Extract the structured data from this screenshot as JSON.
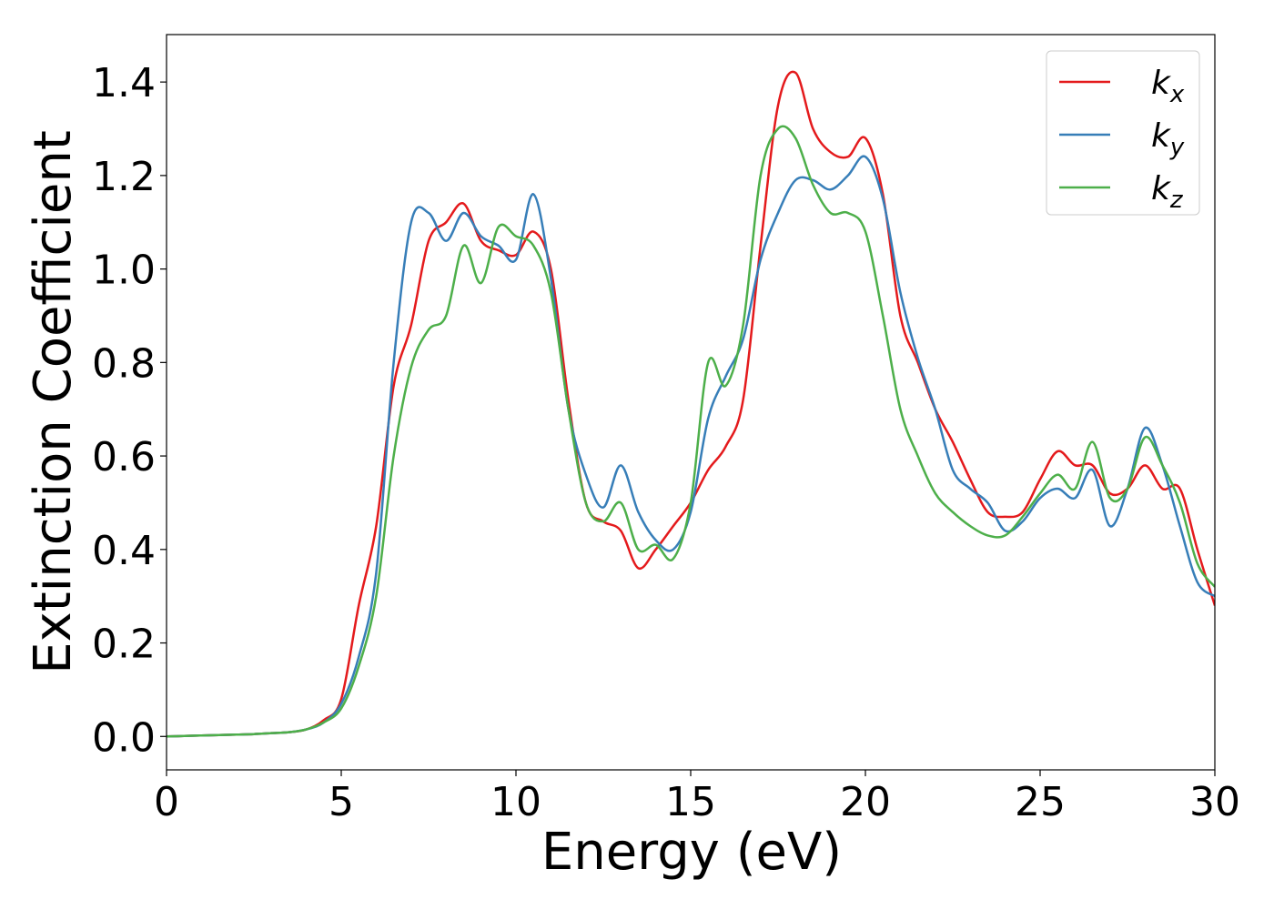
{
  "chart_data": {
    "type": "line",
    "xlabel": "Energy (eV)",
    "ylabel": "Extinction Coefficient",
    "x": [
      0,
      0.5,
      1,
      1.5,
      2,
      2.5,
      3,
      3.5,
      4,
      4.5,
      5,
      5.5,
      6,
      6.5,
      7,
      7.5,
      8,
      8.5,
      9,
      9.5,
      10,
      10.5,
      11,
      11.5,
      12,
      12.5,
      13,
      13.5,
      14,
      14.5,
      15,
      15.5,
      16,
      16.5,
      17,
      17.5,
      18,
      18.5,
      19,
      19.5,
      20,
      20.5,
      21,
      21.5,
      22,
      22.5,
      23,
      23.5,
      24,
      24.5,
      25,
      25.5,
      26,
      26.5,
      27,
      27.5,
      28,
      28.5,
      29,
      29.5,
      30
    ],
    "series": [
      {
        "name": "kx",
        "color": "#e41a1c",
        "values": [
          0,
          0.001,
          0.002,
          0.003,
          0.004,
          0.005,
          0.007,
          0.009,
          0.015,
          0.035,
          0.08,
          0.28,
          0.45,
          0.75,
          0.88,
          1.06,
          1.1,
          1.14,
          1.06,
          1.04,
          1.03,
          1.08,
          1.0,
          0.72,
          0.5,
          0.46,
          0.44,
          0.36,
          0.4,
          0.45,
          0.5,
          0.57,
          0.62,
          0.72,
          1.05,
          1.35,
          1.42,
          1.3,
          1.25,
          1.24,
          1.28,
          1.16,
          0.9,
          0.8,
          0.7,
          0.63,
          0.55,
          0.48,
          0.47,
          0.48,
          0.55,
          0.61,
          0.58,
          0.58,
          0.52,
          0.53,
          0.58,
          0.53,
          0.53,
          0.4,
          0.28
        ]
      },
      {
        "name": "ky",
        "color": "#377eb8",
        "values": [
          0,
          0.001,
          0.002,
          0.003,
          0.004,
          0.005,
          0.007,
          0.009,
          0.015,
          0.03,
          0.07,
          0.17,
          0.35,
          0.8,
          1.1,
          1.12,
          1.06,
          1.12,
          1.07,
          1.05,
          1.02,
          1.16,
          0.98,
          0.7,
          0.56,
          0.49,
          0.58,
          0.48,
          0.42,
          0.4,
          0.48,
          0.68,
          0.77,
          0.85,
          1.02,
          1.12,
          1.19,
          1.19,
          1.17,
          1.2,
          1.24,
          1.15,
          0.95,
          0.81,
          0.7,
          0.57,
          0.53,
          0.5,
          0.44,
          0.46,
          0.51,
          0.53,
          0.51,
          0.57,
          0.45,
          0.53,
          0.66,
          0.58,
          0.45,
          0.33,
          0.3
        ]
      },
      {
        "name": "kz",
        "color": "#4daf4a",
        "values": [
          0,
          0.001,
          0.002,
          0.003,
          0.004,
          0.005,
          0.007,
          0.009,
          0.015,
          0.03,
          0.06,
          0.15,
          0.3,
          0.6,
          0.79,
          0.87,
          0.9,
          1.05,
          0.97,
          1.09,
          1.07,
          1.05,
          0.95,
          0.7,
          0.5,
          0.46,
          0.5,
          0.4,
          0.41,
          0.38,
          0.5,
          0.8,
          0.75,
          0.88,
          1.2,
          1.3,
          1.28,
          1.18,
          1.12,
          1.12,
          1.08,
          0.9,
          0.7,
          0.6,
          0.52,
          0.48,
          0.45,
          0.43,
          0.43,
          0.47,
          0.52,
          0.56,
          0.53,
          0.63,
          0.51,
          0.53,
          0.64,
          0.58,
          0.5,
          0.37,
          0.32
        ]
      }
    ],
    "xlim": [
      0,
      30
    ],
    "xticks": [
      0,
      5,
      10,
      15,
      20,
      25,
      30
    ],
    "ylim": [
      -0.0715,
      1.5015
    ],
    "yticks": [
      {
        "value": 0,
        "label": "0.0"
      },
      {
        "value": 0.2,
        "label": "0.2"
      },
      {
        "value": 0.4,
        "label": "0.4"
      },
      {
        "value": 0.6,
        "label": "0.6"
      },
      {
        "value": 0.8,
        "label": "0.8"
      },
      {
        "value": 1.0,
        "label": "1.0"
      },
      {
        "value": 1.2,
        "label": "1.2"
      },
      {
        "value": 1.4,
        "label": "1.4"
      }
    ],
    "legend": "upper right",
    "grid": false
  }
}
